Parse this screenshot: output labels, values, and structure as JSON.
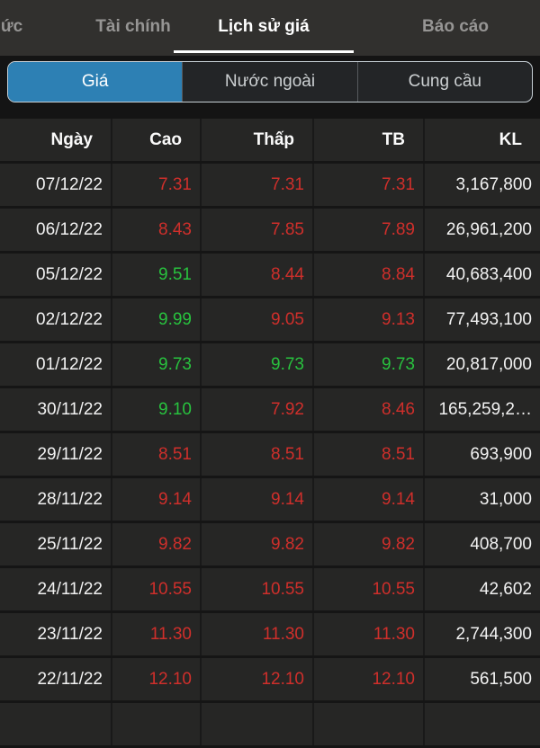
{
  "nav": {
    "tabs": [
      {
        "label": "ức",
        "active": false
      },
      {
        "label": "Tài chính",
        "active": false
      },
      {
        "label": "Lịch sử giá",
        "active": true
      },
      {
        "label": "Báo cáo",
        "active": false
      }
    ]
  },
  "segments": {
    "items": [
      {
        "label": "Giá",
        "active": true
      },
      {
        "label": "Nước ngoài",
        "active": false
      },
      {
        "label": "Cung cầu",
        "active": false
      }
    ]
  },
  "table": {
    "headers": [
      "Ngày",
      "Cao",
      "Thấp",
      "TB",
      "KL"
    ],
    "rows": [
      {
        "date": "07/12/22",
        "high": "7.31",
        "high_t": "down",
        "low": "7.31",
        "low_t": "down",
        "avg": "7.31",
        "avg_t": "down",
        "vol": "3,167,800"
      },
      {
        "date": "06/12/22",
        "high": "8.43",
        "high_t": "down",
        "low": "7.85",
        "low_t": "down",
        "avg": "7.89",
        "avg_t": "down",
        "vol": "26,961,200"
      },
      {
        "date": "05/12/22",
        "high": "9.51",
        "high_t": "up",
        "low": "8.44",
        "low_t": "down",
        "avg": "8.84",
        "avg_t": "down",
        "vol": "40,683,400"
      },
      {
        "date": "02/12/22",
        "high": "9.99",
        "high_t": "up",
        "low": "9.05",
        "low_t": "down",
        "avg": "9.13",
        "avg_t": "down",
        "vol": "77,493,100"
      },
      {
        "date": "01/12/22",
        "high": "9.73",
        "high_t": "up",
        "low": "9.73",
        "low_t": "up",
        "avg": "9.73",
        "avg_t": "up",
        "vol": "20,817,000"
      },
      {
        "date": "30/11/22",
        "high": "9.10",
        "high_t": "up",
        "low": "7.92",
        "low_t": "down",
        "avg": "8.46",
        "avg_t": "down",
        "vol": "165,259,2…"
      },
      {
        "date": "29/11/22",
        "high": "8.51",
        "high_t": "down",
        "low": "8.51",
        "low_t": "down",
        "avg": "8.51",
        "avg_t": "down",
        "vol": "693,900"
      },
      {
        "date": "28/11/22",
        "high": "9.14",
        "high_t": "down",
        "low": "9.14",
        "low_t": "down",
        "avg": "9.14",
        "avg_t": "down",
        "vol": "31,000"
      },
      {
        "date": "25/11/22",
        "high": "9.82",
        "high_t": "down",
        "low": "9.82",
        "low_t": "down",
        "avg": "9.82",
        "avg_t": "down",
        "vol": "408,700"
      },
      {
        "date": "24/11/22",
        "high": "10.55",
        "high_t": "down",
        "low": "10.55",
        "low_t": "down",
        "avg": "10.55",
        "avg_t": "down",
        "vol": "42,602"
      },
      {
        "date": "23/11/22",
        "high": "11.30",
        "high_t": "down",
        "low": "11.30",
        "low_t": "down",
        "avg": "11.30",
        "avg_t": "down",
        "vol": "2,744,300"
      },
      {
        "date": "22/11/22",
        "high": "12.10",
        "high_t": "down",
        "low": "12.10",
        "low_t": "down",
        "avg": "12.10",
        "avg_t": "down",
        "vol": "561,500"
      },
      {
        "date": "",
        "high": "",
        "high_t": "",
        "low": "",
        "low_t": "",
        "avg": "",
        "avg_t": "",
        "vol": ""
      }
    ]
  },
  "colors": {
    "accent_blue": "#2d80b4",
    "up_green": "#28c23e",
    "down_red": "#cf2f2b",
    "navbar_bg": "#31302e",
    "row_bg": "#262625"
  }
}
